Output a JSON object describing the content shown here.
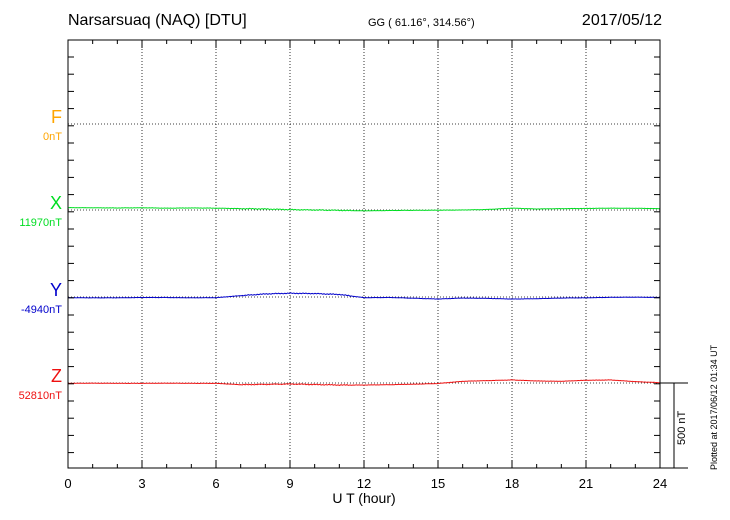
{
  "header": {
    "station": "Narsarsuaq (NAQ)  [DTU]",
    "coords": "GG ( 61.16°, 314.56°)",
    "date": "2017/05/12"
  },
  "plotted_note": "Plotted at 2017/06/12 01:34 UT",
  "chart_data": {
    "type": "line",
    "xlabel": "U T (hour)",
    "xlim": [
      0,
      24
    ],
    "xticks": [
      "0",
      "3",
      "6",
      "9",
      "12",
      "15",
      "18",
      "21",
      "24"
    ],
    "scale_bar_label": "500 nT",
    "scale_bar_nT": 500,
    "grid": true,
    "series": [
      {
        "name": "F",
        "baseline_label": "0nT",
        "color": "#ffa500",
        "hours": [],
        "values": []
      },
      {
        "name": "X",
        "baseline_label": "11970nT",
        "color": "#00dd22",
        "hours": [
          0,
          1,
          2,
          3,
          4,
          5,
          6,
          7,
          8,
          9,
          10,
          11,
          12,
          13,
          14,
          15,
          16,
          17,
          18,
          19,
          20,
          21,
          22,
          23,
          24
        ],
        "values": [
          14,
          13,
          12,
          13,
          11,
          12,
          11,
          8,
          6,
          2,
          0,
          -2,
          -5,
          -3,
          -2,
          -1,
          0,
          3,
          11,
          6,
          8,
          9,
          11,
          10,
          8
        ]
      },
      {
        "name": "Y",
        "baseline_label": "-4940nT",
        "color": "#0000cc",
        "hours": [
          0,
          1,
          2,
          3,
          4,
          5,
          6,
          7,
          8,
          9,
          10,
          11,
          12,
          13,
          14,
          15,
          16,
          17,
          18,
          19,
          20,
          21,
          22,
          23,
          24
        ],
        "values": [
          -4,
          -5,
          -5,
          -3,
          -3,
          -5,
          -4,
          8,
          18,
          22,
          20,
          15,
          -4,
          -3,
          -7,
          -12,
          -6,
          -8,
          -12,
          -10,
          -6,
          -5,
          -2,
          -1,
          -3
        ]
      },
      {
        "name": "Z",
        "baseline_label": "52810nT",
        "color": "#ee1111",
        "hours": [
          0,
          1,
          2,
          3,
          4,
          5,
          6,
          7,
          8,
          9,
          10,
          11,
          12,
          13,
          14,
          15,
          16,
          17,
          18,
          19,
          20,
          21,
          22,
          23,
          24
        ],
        "values": [
          -2,
          -1,
          -2,
          -2,
          -1,
          -2,
          -2,
          -10,
          -8,
          -6,
          -9,
          -12,
          -12,
          -10,
          -7,
          -3,
          10,
          14,
          18,
          12,
          10,
          16,
          18,
          8,
          2
        ]
      }
    ]
  }
}
